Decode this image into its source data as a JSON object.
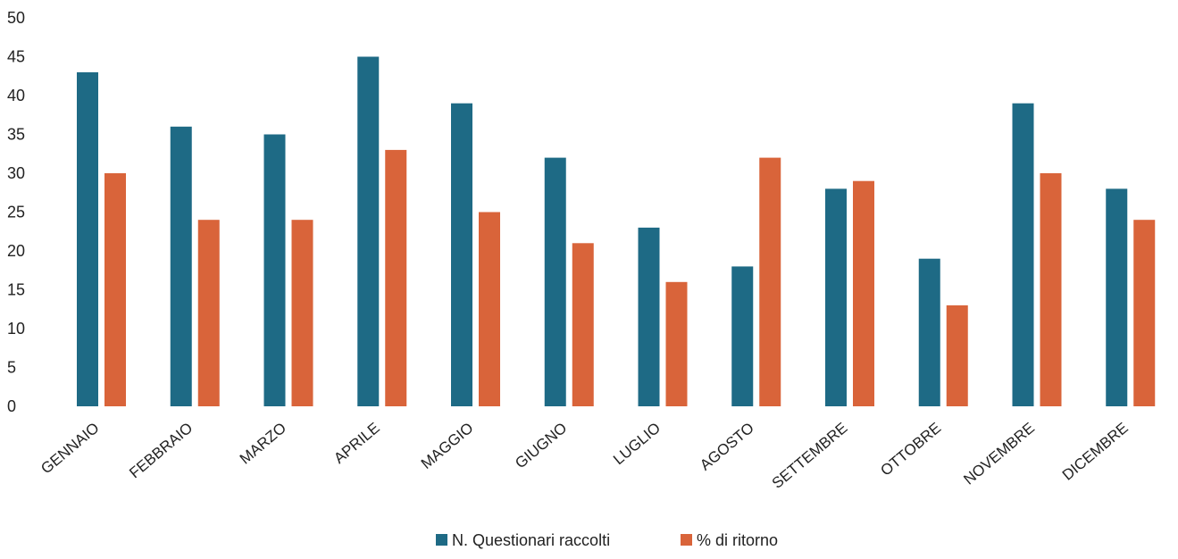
{
  "chart_data": {
    "type": "bar",
    "categories": [
      "GENNAIO",
      "FEBBRAIO",
      "MARZO",
      "APRILE",
      "MAGGIO",
      "GIUGNO",
      "LUGLIO",
      "AGOSTO",
      "SETTEMBRE",
      "OTTOBRE",
      "NOVEMBRE",
      "DICEMBRE"
    ],
    "series": [
      {
        "name": "N. Questionari raccolti",
        "color": "#1E6A85",
        "values": [
          43,
          36,
          35,
          45,
          39,
          32,
          23,
          18,
          28,
          19,
          39,
          28
        ]
      },
      {
        "name": "% di ritorno",
        "color": "#D9643A",
        "values": [
          30,
          24,
          24,
          33,
          25,
          21,
          16,
          32,
          29,
          13,
          30,
          24
        ]
      }
    ],
    "ylim": [
      0,
      50
    ],
    "yticks": [
      0,
      5,
      10,
      15,
      20,
      25,
      30,
      35,
      40,
      45,
      50
    ],
    "title": "",
    "xlabel": "",
    "ylabel": "",
    "grid": false,
    "legend_position": "bottom-center"
  }
}
